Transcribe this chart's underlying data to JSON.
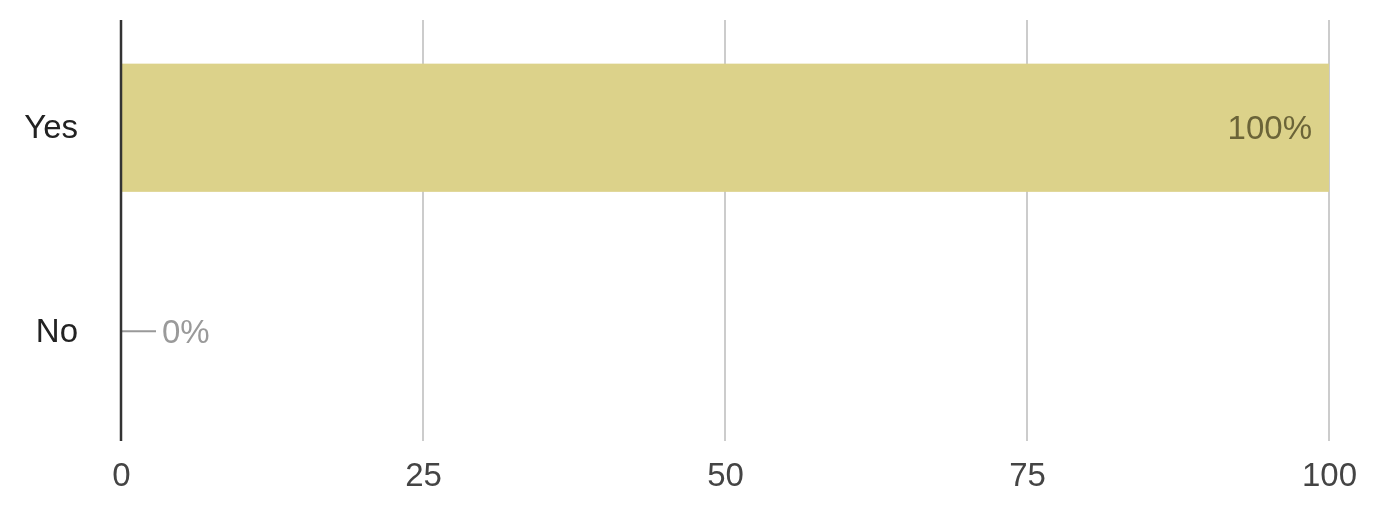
{
  "chart_data": {
    "type": "bar",
    "orientation": "horizontal",
    "categories": [
      "Yes",
      "No"
    ],
    "values": [
      100,
      0
    ],
    "color": "#dcd28a",
    "value_labels": [
      "100%",
      "0%"
    ],
    "xlim": [
      0,
      100
    ],
    "xticks": [
      0,
      25,
      50,
      75,
      100
    ],
    "grid": "x"
  }
}
